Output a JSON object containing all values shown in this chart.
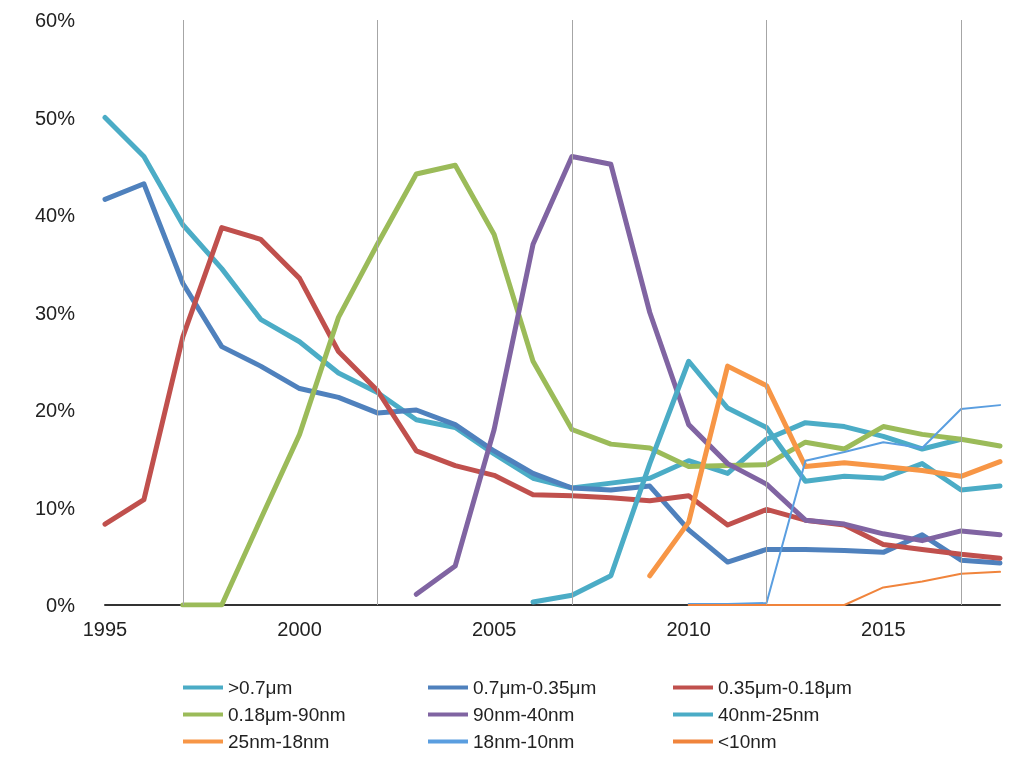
{
  "chart_data": {
    "type": "line",
    "x": [
      1995,
      1996,
      1997,
      1998,
      1999,
      2000,
      2001,
      2002,
      2003,
      2004,
      2005,
      2006,
      2007,
      2008,
      2009,
      2010,
      2011,
      2012,
      2013,
      2014,
      2015,
      2016,
      2017,
      2018
    ],
    "xlim": [
      1995,
      2018
    ],
    "xticks": [
      1995,
      2000,
      2005,
      2010,
      2015
    ],
    "ylim": [
      0,
      60
    ],
    "yticks": [
      {
        "value": 0,
        "label": "0%"
      },
      {
        "value": 10,
        "label": "10%"
      },
      {
        "value": 20,
        "label": "20%"
      },
      {
        "value": 30,
        "label": "30%"
      },
      {
        "value": 40,
        "label": "40%"
      },
      {
        "value": 50,
        "label": "50%"
      },
      {
        "value": 60,
        "label": "60%"
      }
    ],
    "grid": false,
    "legend": "bottom",
    "marker": "none",
    "line_style": "solid",
    "ref_lines": [
      {
        "axis": "x",
        "value": 1997,
        "color": "#a6a6a6"
      },
      {
        "axis": "x",
        "value": 2002,
        "color": "#a6a6a6"
      },
      {
        "axis": "x",
        "value": 2007,
        "color": "#a6a6a6"
      },
      {
        "axis": "x",
        "value": 2012,
        "color": "#a6a6a6"
      },
      {
        "axis": "x",
        "value": 2017,
        "color": "#a6a6a6"
      }
    ],
    "series": [
      {
        "name": ">0.7μm",
        "color": "#4bacc6",
        "values": [
          50,
          46,
          39,
          34.5,
          29.3,
          27,
          23.8,
          21.8,
          19,
          18.2,
          15.5,
          13,
          12,
          12.5,
          13,
          14.8,
          13.5,
          17,
          18.7,
          18.3,
          17.3,
          16,
          17,
          null
        ]
      },
      {
        "name": "0.7μm-0.35μm",
        "color": "#4f81bd",
        "values": [
          41.6,
          43.2,
          33,
          26.5,
          24.5,
          22.2,
          21.3,
          19.7,
          20,
          18.5,
          15.8,
          13.5,
          12,
          11.8,
          12.2,
          7.7,
          4.4,
          5.7,
          5.7,
          5.6,
          5.4,
          7.2,
          4.6,
          4.3
        ]
      },
      {
        "name": "0.35μm-0.18μm",
        "color": "#c0504d",
        "values": [
          8.3,
          10.8,
          27.5,
          38.7,
          37.5,
          33.5,
          26,
          22,
          15.8,
          14.3,
          13.3,
          11.3,
          11.2,
          11,
          10.7,
          11.2,
          8.2,
          9.8,
          8.7,
          8.2,
          6.2,
          5.7,
          5.2,
          4.8
        ]
      },
      {
        "name": "0.18μm-90nm",
        "color": "#9bbb59",
        "values": [
          null,
          null,
          0,
          0,
          8.8,
          17.5,
          29.5,
          37,
          44.2,
          45.1,
          38,
          25,
          18,
          16.5,
          16.1,
          14.2,
          14.3,
          14.4,
          16.7,
          16,
          18.3,
          17.5,
          17,
          16.3
        ]
      },
      {
        "name": "90nm-40nm",
        "color": "#8064a2",
        "values": [
          null,
          null,
          null,
          null,
          null,
          null,
          null,
          null,
          1.1,
          4,
          18,
          37,
          46,
          45.2,
          30,
          18.5,
          14.5,
          12.4,
          8.7,
          8.3,
          7.3,
          6.6,
          7.6,
          7.2
        ]
      },
      {
        "name": "40nm-25nm",
        "color": "#4bacc6",
        "values": [
          null,
          null,
          null,
          null,
          null,
          null,
          null,
          null,
          null,
          null,
          null,
          0.3,
          1,
          3,
          14.5,
          25,
          20.2,
          18.2,
          12.7,
          13.2,
          13,
          14.5,
          11.8,
          12.2
        ]
      },
      {
        "name": "25nm-18nm",
        "color": "#f79646",
        "values": [
          null,
          null,
          null,
          null,
          null,
          null,
          null,
          null,
          null,
          null,
          null,
          null,
          null,
          null,
          3,
          8.5,
          24.5,
          22.5,
          14.2,
          14.6,
          14.2,
          13.8,
          13.2,
          14.7
        ]
      },
      {
        "name": "18nm-10nm",
        "color": "#5a9ee0",
        "values": [
          null,
          null,
          null,
          null,
          null,
          null,
          null,
          null,
          null,
          null,
          null,
          null,
          null,
          null,
          null,
          0.1,
          0.1,
          0.2,
          14.8,
          15.7,
          16.7,
          16.1,
          20.1,
          20.5
        ]
      },
      {
        "name": "<10nm",
        "color": "#f0843c",
        "values": [
          null,
          null,
          null,
          null,
          null,
          null,
          null,
          null,
          null,
          null,
          null,
          null,
          null,
          null,
          null,
          0,
          0,
          0,
          0,
          0,
          1.8,
          2.4,
          3.2,
          3.4
        ]
      }
    ]
  }
}
